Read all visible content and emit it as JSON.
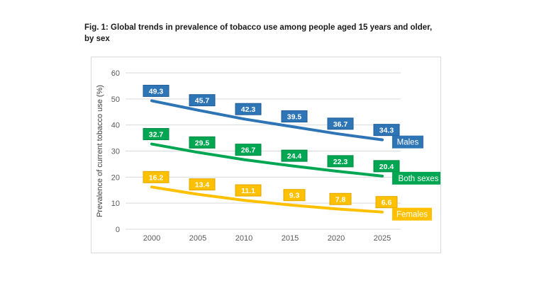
{
  "figure": {
    "title_line1": "Fig. 1: Global trends in prevalence of tobacco use among people aged 15 years and older,",
    "title_line2": "by sex"
  },
  "chart_data": {
    "type": "line",
    "x": [
      2000,
      2005,
      2010,
      2015,
      2020,
      2025
    ],
    "series": [
      {
        "name": "Males",
        "values": [
          49.3,
          45.7,
          42.3,
          39.5,
          36.7,
          34.3
        ],
        "color": "#2E75B6",
        "label_border": "#1F5C96"
      },
      {
        "name": "Both sexes",
        "values": [
          32.7,
          29.5,
          26.7,
          24.4,
          22.3,
          20.4
        ],
        "color": "#00A651",
        "label_border": "#008A43"
      },
      {
        "name": "Females",
        "values": [
          16.2,
          13.4,
          11.1,
          9.3,
          7.8,
          6.6
        ],
        "color": "#FFC000",
        "label_border": "#E0A800"
      }
    ],
    "ylabel": "Prevalence of current tobacco use (%)",
    "ylim": [
      0,
      60
    ],
    "yticks": [
      0,
      10,
      20,
      30,
      40,
      50,
      60
    ],
    "grid": true,
    "data_labels": true,
    "legend_position": "end-of-line",
    "gridline_color": "#d9d9d9",
    "tick_color": "#595959",
    "axis_title_color": "#404040"
  }
}
